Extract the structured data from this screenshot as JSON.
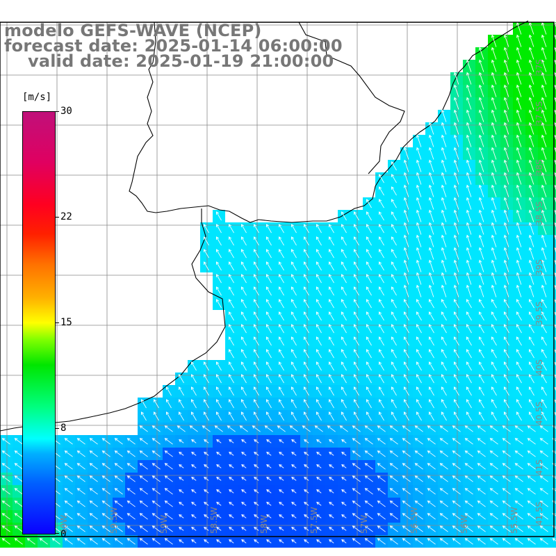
{
  "title": {
    "model": "modelo GEFS-WAVE (NCEP)",
    "forecast": "forecast date: 2025-01-14 06:00:00",
    "valid": "valid date: 2025-01-19 21:00:00"
  },
  "colorbar": {
    "unit": "[m/s]",
    "labels": [
      {
        "value": 30,
        "text": "30"
      },
      {
        "value": 22,
        "text": "22"
      },
      {
        "value": 15,
        "text": "15"
      },
      {
        "value": 8,
        "text": "8"
      },
      {
        "value": 0,
        "text": "0"
      }
    ],
    "colors": {
      "low": "#0a00ff",
      "mid": "#00ffff",
      "green": "#00e600",
      "yellow": "#ffff00",
      "red": "#ff0020",
      "high": "#c0107a"
    }
  },
  "axes": {
    "lat_labels": [
      "37S",
      "37.5S",
      "38S",
      "38.5S",
      "39S",
      "39.5S",
      "40S",
      "40.5S",
      "41S",
      "41.5S"
    ],
    "lon_labels": [
      "60W",
      "59.5W",
      "59W",
      "58.5W",
      "58W",
      "57.5W",
      "57W",
      "56.5W",
      "56W",
      "55.5W"
    ]
  }
}
